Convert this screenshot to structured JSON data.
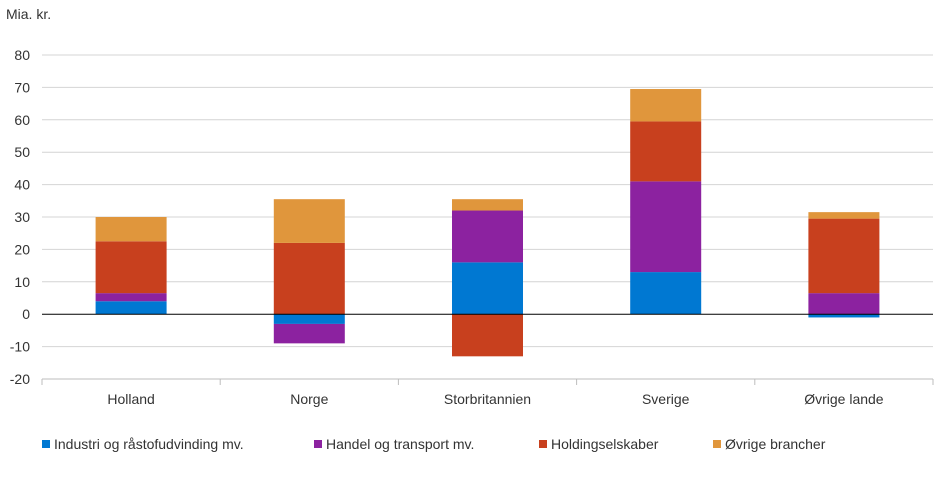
{
  "chart_data": {
    "type": "bar",
    "stacked": true,
    "unit_label": "Mia. kr.",
    "categories": [
      "Holland",
      "Norge",
      "Storbritannien",
      "Sverige",
      "Øvrige lande"
    ],
    "series": [
      {
        "name": "Industri og råstofudvinding mv.",
        "color": "#0078d2",
        "values": [
          4,
          -3,
          16,
          13,
          -1
        ]
      },
      {
        "name": "Handel og transport mv.",
        "color": "#8c22a0",
        "values": [
          2.5,
          -6,
          16,
          28,
          6.5
        ]
      },
      {
        "name": "Holdingselskaber",
        "color": "#c8401e",
        "values": [
          16,
          22,
          -13,
          18.5,
          23
        ]
      },
      {
        "name": "Øvrige brancher",
        "color": "#e0963c",
        "values": [
          7.5,
          13.5,
          3.5,
          10,
          2
        ]
      }
    ],
    "ylim": [
      -20,
      80
    ],
    "yticks": [
      -20,
      -10,
      0,
      10,
      20,
      30,
      40,
      50,
      60,
      70,
      80
    ],
    "legend_position": "bottom",
    "grid": true
  }
}
